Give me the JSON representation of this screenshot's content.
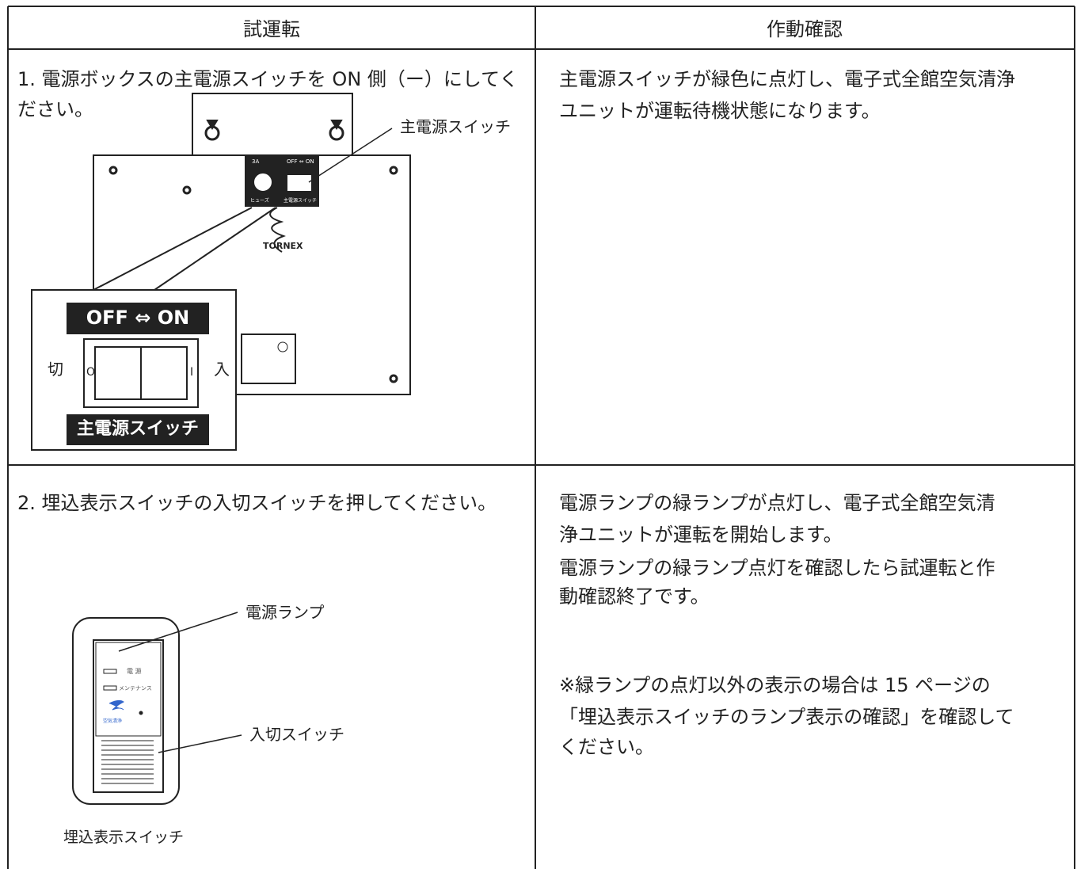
{
  "table": {
    "headers": [
      "試運転",
      "作動確認"
    ],
    "rows": [
      [
        {
          "lines": [
            "1. 電源ボックスの主電源スイッチを ON 側（ー）にしてく",
            "ださい。"
          ]
        },
        {
          "lines": [
            "主電源スイッチが緑色に点灯し、電子式全館空気清浄",
            "ユニットが運転待機状態になります。"
          ]
        }
      ],
      [
        {
          "lines": [
            "2. 埋込表示スイッチの入切スイッチを押してください。"
          ]
        },
        {
          "lines": [
            "電源ランプの緑ランプが点灯し、電子式全館空気清",
            "浄ユニットが運転を開始します。",
            "電源ランプの緑ランプ点灯を確認したら試運転と作",
            "動確認終了です。"
          ],
          "note": [
            "※緑ランプの点灯以外の表示の場合は 15 ページの",
            "「埋込表示スイッチのランプ表示の確認」を確認して",
            "ください。"
          ]
        }
      ]
    ]
  },
  "figure1": {
    "callout": "主電源スイッチ",
    "switch_heading": "OFF ⇔ ON",
    "off": "切",
    "on": "入",
    "off_symbol": "O",
    "on_symbol": "I",
    "switch_label": "主電源スイッチ",
    "fuse_rating": "3A",
    "panel_heading": "OFF ⇔ ON",
    "fuse": "ヒューズ",
    "panel_switch": "主電源スイッチ",
    "brand": "TORNEX"
  },
  "figure2": {
    "lamp": "電源ランプ",
    "button": "入切スイッチ",
    "caption": "埋込表示スイッチ",
    "power": "電 源",
    "maintenance": "メンテナンス",
    "logo": "空気清浄"
  }
}
